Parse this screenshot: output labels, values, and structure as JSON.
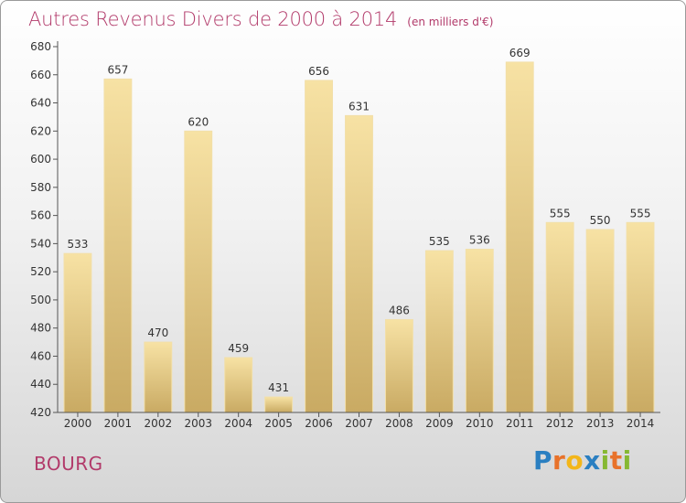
{
  "header": {
    "title": "Autres Revenus Divers de 2000 à 2014",
    "unit": "(en milliers d'€)"
  },
  "footer": {
    "location": "BOURG",
    "logo": [
      "P",
      "r",
      "o",
      "x",
      "i",
      "t",
      "i"
    ]
  },
  "colors": {
    "bar_light": "#f7e2a4",
    "bar_dark": "#c9aa63",
    "title": "#b23a6a",
    "logo": [
      "#2a7fc1",
      "#e8722a",
      "#f3b61a",
      "#2a7fc1",
      "#86b832",
      "#e8722a",
      "#86b832"
    ]
  },
  "chart_data": {
    "type": "bar",
    "categories": [
      "2000",
      "2001",
      "2002",
      "2003",
      "2004",
      "2005",
      "2006",
      "2007",
      "2008",
      "2009",
      "2010",
      "2011",
      "2012",
      "2013",
      "2014"
    ],
    "values": [
      533,
      657,
      470,
      620,
      459,
      431,
      656,
      631,
      486,
      535,
      536,
      669,
      555,
      550,
      555
    ],
    "title": "Autres Revenus Divers de 2000 à 2014",
    "ylim": [
      420,
      680
    ],
    "yticks": [
      420,
      440,
      460,
      480,
      500,
      520,
      540,
      560,
      580,
      600,
      620,
      640,
      660,
      680
    ],
    "grid": false,
    "legend": "none"
  }
}
